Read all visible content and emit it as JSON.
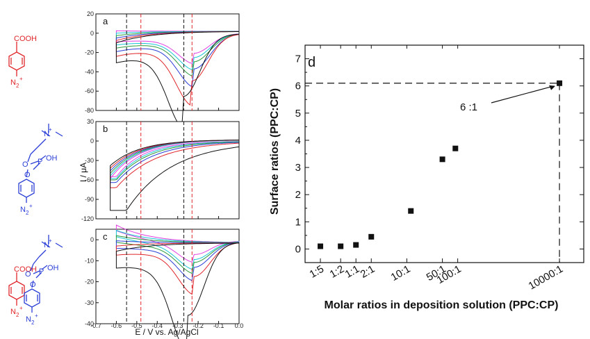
{
  "colors": {
    "red": "#e0262b",
    "blue": "#2b3fd6",
    "black": "#111111",
    "magenta": "#e13fe0",
    "cyan": "#18c6d4",
    "green": "#2a9a3c"
  },
  "chemistry": {
    "cooh": "COOH",
    "n2plus": "N",
    "n2sub": "2",
    "plus": "+",
    "n_cation": "N",
    "oh": "OH",
    "p": "P",
    "o": "O"
  },
  "cv": {
    "xlabel": "E / V vs. Ag/AgCl",
    "ylabel": "I / μA",
    "xticks": [
      "-0.7",
      "-0.6",
      "-0.5",
      "-0.4",
      "-0.3",
      "-0.2",
      "-0.1",
      "0.0"
    ],
    "dashed_black": [
      -0.55,
      -0.27
    ],
    "dashed_red": [
      -0.48,
      -0.23
    ],
    "panels": [
      {
        "letter": "a",
        "yticks": [
          "20",
          "0",
          "-20",
          "-40",
          "-60",
          "-80"
        ]
      },
      {
        "letter": "b",
        "yticks": [
          "30",
          "0",
          "-30",
          "-60",
          "-90",
          "-120"
        ]
      },
      {
        "letter": "c",
        "yticks": [
          "0",
          "-10",
          "-20",
          "-30",
          "-40"
        ]
      }
    ]
  },
  "chart_data": [
    {
      "type": "line",
      "panel": "a",
      "xlabel": "E / V vs. Ag/AgCl",
      "ylabel": "I / μA",
      "xlim": [
        -0.7,
        0.0
      ],
      "ylim": [
        -80,
        20
      ],
      "series": [
        {
          "color": "black",
          "peak_x": -0.27,
          "peak_y": -62
        },
        {
          "color": "red",
          "peak_x": -0.23,
          "peak_y": -47
        },
        {
          "color": "blue",
          "peak_x": -0.22,
          "peak_y": -35
        },
        {
          "color": "green",
          "peak_x": -0.22,
          "peak_y": -28
        },
        {
          "color": "cyan",
          "peak_x": -0.22,
          "peak_y": -24
        },
        {
          "color": "magenta",
          "peak_x": -0.22,
          "peak_y": -20
        }
      ]
    },
    {
      "type": "line",
      "panel": "b",
      "xlabel": "E / V vs. Ag/AgCl",
      "ylabel": "I / μA",
      "xlim": [
        -0.7,
        0.0
      ],
      "ylim": [
        -120,
        30
      ],
      "series": [
        {
          "color": "black",
          "peak_x": -0.55,
          "peak_y": -107
        },
        {
          "color": "red",
          "peak_x": -0.6,
          "peak_y": -72
        },
        {
          "color": "blue",
          "peak_x": -0.6,
          "peak_y": -64
        },
        {
          "color": "green",
          "peak_x": -0.6,
          "peak_y": -60
        },
        {
          "color": "cyan",
          "peak_x": -0.6,
          "peak_y": -58
        },
        {
          "color": "magenta",
          "peak_x": -0.6,
          "peak_y": -55
        }
      ]
    },
    {
      "type": "line",
      "panel": "c",
      "xlabel": "E / V vs. Ag/AgCl",
      "ylabel": "I / μA",
      "xlim": [
        -0.7,
        0.0
      ],
      "ylim": [
        -40,
        5
      ],
      "series": [
        {
          "color": "black",
          "peak_x": -0.25,
          "peak_y": -35
        },
        {
          "color": "red",
          "peak_x": -0.22,
          "peak_y": -17
        },
        {
          "color": "blue",
          "peak_x": -0.22,
          "peak_y": -13
        },
        {
          "color": "green",
          "peak_x": -0.22,
          "peak_y": -11
        },
        {
          "color": "cyan",
          "peak_x": -0.22,
          "peak_y": -10
        },
        {
          "color": "magenta",
          "peak_x": -0.22,
          "peak_y": -8
        }
      ]
    },
    {
      "type": "scatter",
      "panel": "d",
      "xlabel": "Molar ratios in deposition solution (PPC:CP)",
      "ylabel": "Surface ratios (PPC:CP)",
      "x_scale": "log",
      "ylim": [
        -0.5,
        7.5
      ],
      "yticks": [
        "0",
        "1",
        "2",
        "3",
        "4",
        "5",
        "6",
        "7"
      ],
      "x_tick_labels": [
        "1:5",
        "1:2",
        "1:1",
        "2:1",
        "10:1",
        "50:1",
        "100:1",
        "10000:1"
      ],
      "x_tick_values": [
        0.2,
        0.5,
        1,
        2,
        10,
        50,
        100,
        10000
      ],
      "points": [
        {
          "x": 0.2,
          "y": 0.1
        },
        {
          "x": 0.5,
          "y": 0.1
        },
        {
          "x": 1,
          "y": 0.15
        },
        {
          "x": 2,
          "y": 0.45
        },
        {
          "x": 12,
          "y": 1.4
        },
        {
          "x": 50,
          "y": 3.3
        },
        {
          "x": 90,
          "y": 3.7
        },
        {
          "x": 10000,
          "y": 6.1
        }
      ],
      "annotation": "6 :1",
      "panel_letter": "d"
    }
  ]
}
